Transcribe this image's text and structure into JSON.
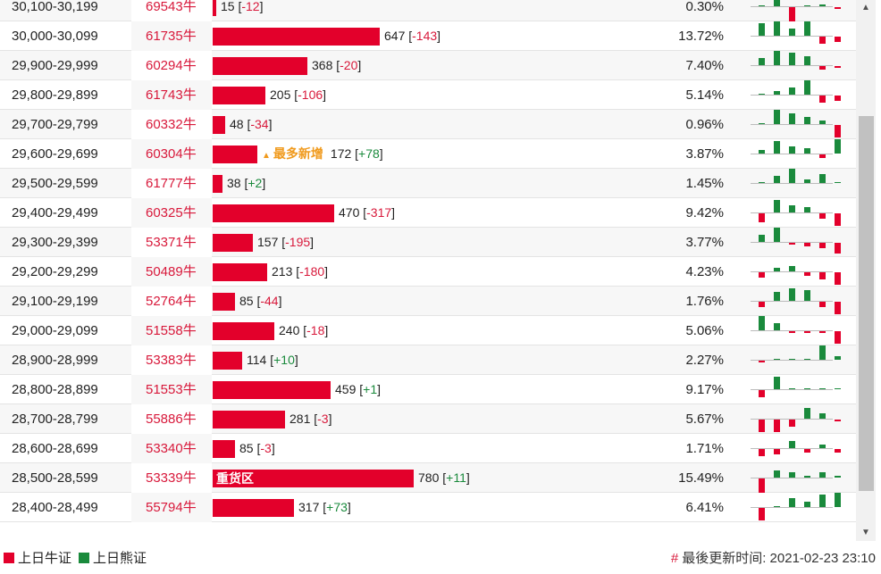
{
  "colors": {
    "bull": "#e3002b",
    "bear": "#1a8a3c",
    "badge": "#f09a1d"
  },
  "rows": [
    {
      "range": "30,100-30,199",
      "ratio": "69543牛",
      "value": 15,
      "delta": "-12",
      "pct": "0.30%",
      "spark": [
        0,
        16,
        -16,
        0,
        2,
        -2
      ]
    },
    {
      "range": "30,000-30,099",
      "ratio": "61735牛",
      "value": 647,
      "delta": "-143",
      "pct": "13.72%",
      "spark": [
        14,
        16,
        8,
        16,
        -8,
        -6
      ]
    },
    {
      "range": "29,900-29,999",
      "ratio": "60294牛",
      "value": 368,
      "delta": "-20",
      "pct": "7.40%",
      "spark": [
        8,
        16,
        14,
        10,
        -4,
        -2
      ]
    },
    {
      "range": "29,800-29,899",
      "ratio": "61743牛",
      "value": 205,
      "delta": "-106",
      "pct": "5.14%",
      "spark": [
        0,
        4,
        8,
        16,
        -8,
        -6
      ]
    },
    {
      "range": "29,700-29,799",
      "ratio": "60332牛",
      "value": 48,
      "delta": "-34",
      "pct": "0.96%",
      "spark": [
        0,
        16,
        12,
        8,
        4,
        -14
      ]
    },
    {
      "range": "29,600-29,699",
      "ratio": "60304牛",
      "value": 172,
      "delta": "+78",
      "pct": "3.87%",
      "spark": [
        4,
        14,
        8,
        6,
        -4,
        16
      ],
      "badge": "最多新增"
    },
    {
      "range": "29,500-29,599",
      "ratio": "61777牛",
      "value": 38,
      "delta": "+2",
      "pct": "1.45%",
      "spark": [
        0,
        8,
        16,
        4,
        10,
        0
      ]
    },
    {
      "range": "29,400-29,499",
      "ratio": "60325牛",
      "value": 470,
      "delta": "-317",
      "pct": "9.42%",
      "spark": [
        -10,
        14,
        8,
        6,
        -6,
        -14
      ]
    },
    {
      "range": "29,300-29,399",
      "ratio": "53371牛",
      "value": 157,
      "delta": "-195",
      "pct": "3.77%",
      "spark": [
        8,
        16,
        -2,
        -4,
        -6,
        -12
      ]
    },
    {
      "range": "29,200-29,299",
      "ratio": "50489牛",
      "value": 213,
      "delta": "-180",
      "pct": "4.23%",
      "spark": [
        -6,
        4,
        6,
        -4,
        -8,
        -14
      ]
    },
    {
      "range": "29,100-29,199",
      "ratio": "52764牛",
      "value": 85,
      "delta": "-44",
      "pct": "1.76%",
      "spark": [
        -6,
        10,
        14,
        12,
        -6,
        -14
      ]
    },
    {
      "range": "29,000-29,099",
      "ratio": "51558牛",
      "value": 240,
      "delta": "-18",
      "pct": "5.06%",
      "spark": [
        16,
        8,
        -2,
        -2,
        -2,
        -14
      ]
    },
    {
      "range": "28,900-28,999",
      "ratio": "53383牛",
      "value": 114,
      "delta": "+10",
      "pct": "2.27%",
      "spark": [
        -2,
        0,
        0,
        0,
        16,
        4
      ]
    },
    {
      "range": "28,800-28,899",
      "ratio": "51553牛",
      "value": 459,
      "delta": "+1",
      "pct": "9.17%",
      "spark": [
        -8,
        14,
        0,
        0,
        0,
        0
      ]
    },
    {
      "range": "28,700-28,799",
      "ratio": "55886牛",
      "value": 281,
      "delta": "-3",
      "pct": "5.67%",
      "spark": [
        -14,
        -14,
        -8,
        12,
        6,
        -2
      ]
    },
    {
      "range": "28,600-28,699",
      "ratio": "53340牛",
      "value": 85,
      "delta": "-3",
      "pct": "1.71%",
      "spark": [
        -8,
        -6,
        8,
        -4,
        4,
        -4
      ]
    },
    {
      "range": "28,500-28,599",
      "ratio": "53339牛",
      "value": 780,
      "delta": "+11",
      "pct": "15.49%",
      "spark": [
        -16,
        8,
        6,
        2,
        6,
        2
      ],
      "label": "重货区"
    },
    {
      "range": "28,400-28,499",
      "ratio": "55794牛",
      "value": 317,
      "delta": "+73",
      "pct": "6.41%",
      "spark": [
        -14,
        0,
        10,
        6,
        14,
        16
      ]
    }
  ],
  "bar_max_value": 780,
  "footer": {
    "legend_bull": "上日牛证",
    "legend_bear": "上日熊证",
    "hash": "#",
    "update_time": "最後更新时间: 2021-02-23 23:10"
  }
}
